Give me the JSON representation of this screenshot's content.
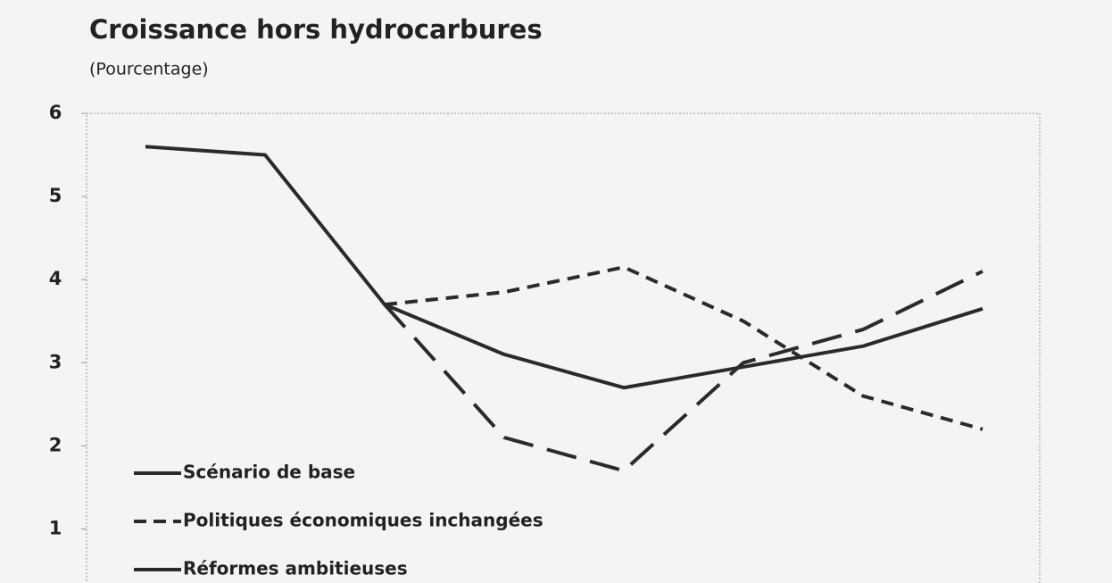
{
  "chart_data": {
    "type": "line",
    "title": "Croissance hors hydrocarbures",
    "subtitle": "(Pourcentage)",
    "categories": [
      null,
      null,
      null,
      null,
      null,
      null,
      null,
      null
    ],
    "series": [
      {
        "name": "Scénario de base",
        "color": "#2a2a2a",
        "dash": "solid",
        "values": [
          5.6,
          5.5,
          3.7,
          3.1,
          2.7,
          2.95,
          3.2,
          3.65
        ]
      },
      {
        "name": "Politiques économiques inchangées",
        "color": "#2a2a2a",
        "dash": "short",
        "values": [
          null,
          null,
          3.7,
          3.85,
          4.15,
          3.5,
          2.6,
          2.2
        ]
      },
      {
        "name": "Réformes ambitieuses",
        "color": "#2a2a2a",
        "dash": "long",
        "values": [
          null,
          null,
          3.7,
          2.1,
          1.7,
          3.0,
          3.4,
          4.1
        ]
      }
    ],
    "ylim": [
      0.35,
      6
    ],
    "yticks": [
      1,
      2,
      3,
      4,
      5,
      6
    ],
    "grid": false,
    "legend": "lower left"
  }
}
